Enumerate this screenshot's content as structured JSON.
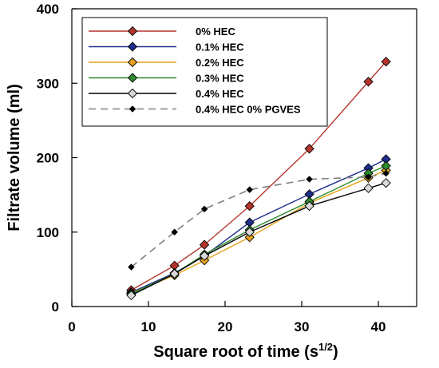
{
  "chart_data": {
    "type": "line",
    "xlabel": "Square root of time (s",
    "xlabel_superscript": "1/2",
    "xlabel_close": ")",
    "ylabel": "Filtrate volume (ml)",
    "xlim": [
      0,
      45
    ],
    "ylim": [
      0,
      400
    ],
    "xticks": [
      0,
      10,
      20,
      30,
      40
    ],
    "yticks": [
      0,
      100,
      200,
      300,
      400
    ],
    "grid": false,
    "legend_position": "top-left",
    "series": [
      {
        "name": "0% HEC",
        "line_color": "#b5342b",
        "marker_color": "#b5342b",
        "marker": "diamond",
        "dashed": false,
        "x": [
          7.75,
          13.4,
          17.3,
          23.2,
          31.0,
          38.7,
          41.0
        ],
        "y": [
          22,
          55,
          83,
          135,
          212,
          302,
          329
        ]
      },
      {
        "name": "0.1% HEC",
        "line_color": "#1f2e8c",
        "marker_color": "#1f2e8c",
        "marker": "diamond",
        "dashed": false,
        "x": [
          7.75,
          13.4,
          17.3,
          23.2,
          31.0,
          38.7,
          41.0
        ],
        "y": [
          19,
          45,
          68,
          113,
          151,
          186,
          198
        ]
      },
      {
        "name": "0.2% HEC",
        "line_color": "#e5a21b",
        "marker_color": "#e5a21b",
        "marker": "diamond",
        "dashed": false,
        "x": [
          7.75,
          13.4,
          17.3,
          23.2,
          31.0,
          38.7,
          41.0
        ],
        "y": [
          18,
          42,
          62,
          93,
          139,
          173,
          183
        ]
      },
      {
        "name": "0.3% HEC",
        "line_color": "#2e8b2e",
        "marker_color": "#2e8b2e",
        "marker": "diamond",
        "dashed": false,
        "x": [
          7.75,
          13.4,
          17.3,
          23.2,
          31.0,
          38.7,
          41.0
        ],
        "y": [
          17,
          44,
          70,
          103,
          141,
          179,
          189
        ]
      },
      {
        "name": "0.4% HEC",
        "line_color": "#000000",
        "marker_color": "#d9d9d9",
        "marker": "diamond",
        "dashed": false,
        "x": [
          7.75,
          13.4,
          17.3,
          23.2,
          31.0,
          38.7,
          41.0
        ],
        "y": [
          15,
          44,
          68,
          100,
          135,
          159,
          166
        ]
      },
      {
        "name": "0.4% HEC 0% PGVES",
        "line_color": "#808080",
        "marker_color": "#000000",
        "marker": "diamond-small",
        "dashed": true,
        "x": [
          7.75,
          13.4,
          17.3,
          23.2,
          31.0,
          38.7,
          41.0
        ],
        "y": [
          53,
          100,
          131,
          157,
          171,
          174,
          179
        ]
      }
    ]
  }
}
